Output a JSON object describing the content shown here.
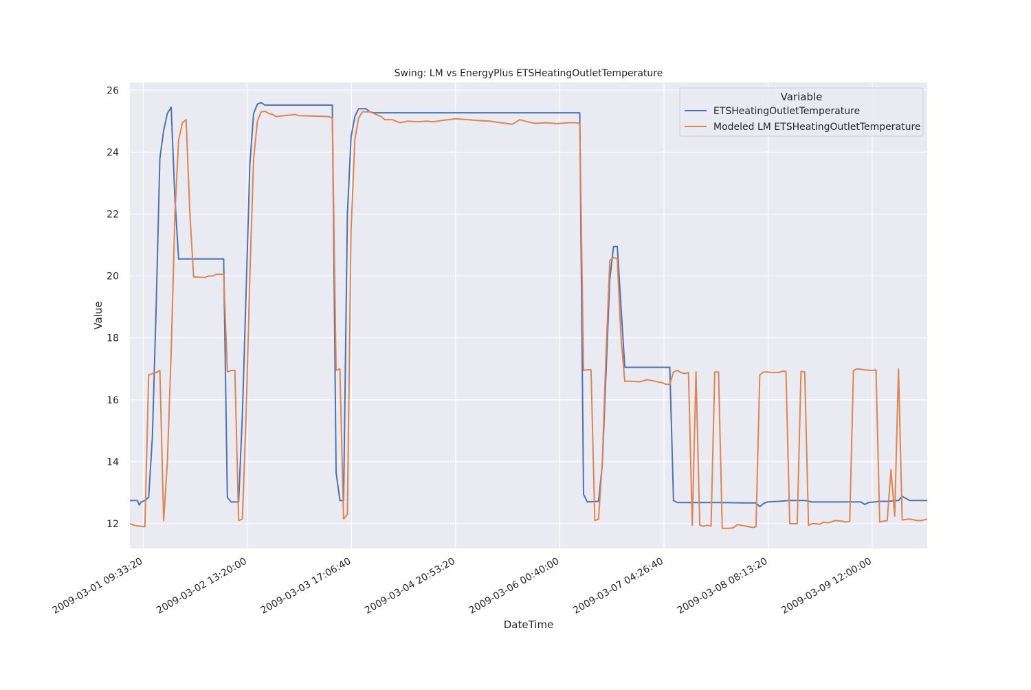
{
  "chart_data": {
    "type": "line",
    "title": "Swing: LM vs EnergyPlus ETSHeatingOutletTemperature",
    "xlabel": "DateTime",
    "ylabel": "Value",
    "xlim": [
      "2009-03-01 06:00:00",
      "2009-03-10 02:40:00"
    ],
    "ylim": [
      11.2,
      26.25
    ],
    "x_ticks": [
      "2009-03-01 09:33:20",
      "2009-03-02 13:20:00",
      "2009-03-03 17:06:40",
      "2009-03-04 20:53:20",
      "2009-03-06 00:40:00",
      "2009-03-07 04:26:40",
      "2009-03-08 08:13:20",
      "2009-03-09 12:00:00"
    ],
    "y_ticks": [
      12,
      14,
      16,
      18,
      20,
      22,
      24,
      26
    ],
    "grid": true,
    "legend": {
      "title": "Variable",
      "position": "top-right"
    },
    "series": [
      {
        "name": "ETSHeatingOutletTemperature",
        "color": "#4c72b0",
        "points": [
          [
            "2009-03-01 06:00:00",
            12.75
          ],
          [
            "2009-03-01 08:00:00",
            12.75
          ],
          [
            "2009-03-01 08:30:00",
            12.6
          ],
          [
            "2009-03-01 09:00:00",
            12.7
          ],
          [
            "2009-03-01 10:00:00",
            12.75
          ],
          [
            "2009-03-01 11:00:00",
            12.85
          ],
          [
            "2009-03-01 12:00:00",
            14.8
          ],
          [
            "2009-03-01 13:00:00",
            19.0
          ],
          [
            "2009-03-01 14:00:00",
            23.8
          ],
          [
            "2009-03-01 15:00:00",
            24.7
          ],
          [
            "2009-03-01 16:00:00",
            25.25
          ],
          [
            "2009-03-01 17:00:00",
            25.45
          ],
          [
            "2009-03-01 18:00:00",
            22.5
          ],
          [
            "2009-03-01 19:00:00",
            20.55
          ],
          [
            "2009-03-02 07:00:00",
            20.55
          ],
          [
            "2009-03-02 08:00:00",
            12.85
          ],
          [
            "2009-03-02 09:00:00",
            12.7
          ],
          [
            "2009-03-02 11:00:00",
            12.7
          ],
          [
            "2009-03-02 12:00:00",
            15.5
          ],
          [
            "2009-03-02 13:00:00",
            19.5
          ],
          [
            "2009-03-02 14:00:00",
            23.6
          ],
          [
            "2009-03-02 15:00:00",
            25.25
          ],
          [
            "2009-03-02 16:00:00",
            25.55
          ],
          [
            "2009-03-02 17:00:00",
            25.6
          ],
          [
            "2009-03-02 18:00:00",
            25.52
          ],
          [
            "2009-03-03 12:00:00",
            25.52
          ],
          [
            "2009-03-03 13:00:00",
            13.65
          ],
          [
            "2009-03-03 14:00:00",
            12.75
          ],
          [
            "2009-03-03 15:00:00",
            12.75
          ],
          [
            "2009-03-03 16:00:00",
            22.0
          ],
          [
            "2009-03-03 17:00:00",
            24.5
          ],
          [
            "2009-03-03 18:00:00",
            25.15
          ],
          [
            "2009-03-03 19:00:00",
            25.4
          ],
          [
            "2009-03-03 21:00:00",
            25.4
          ],
          [
            "2009-03-03 22:00:00",
            25.3
          ],
          [
            "2009-03-03 23:00:00",
            25.27
          ],
          [
            "2009-03-06 06:00:00",
            25.27
          ],
          [
            "2009-03-06 07:00:00",
            12.95
          ],
          [
            "2009-03-06 08:00:00",
            12.7
          ],
          [
            "2009-03-06 11:00:00",
            12.72
          ],
          [
            "2009-03-06 12:00:00",
            13.9
          ],
          [
            "2009-03-06 14:00:00",
            19.9
          ],
          [
            "2009-03-06 15:00:00",
            20.95
          ],
          [
            "2009-03-06 16:00:00",
            20.95
          ],
          [
            "2009-03-06 18:00:00",
            17.05
          ],
          [
            "2009-03-07 06:00:00",
            17.05
          ],
          [
            "2009-03-07 07:00:00",
            12.75
          ],
          [
            "2009-03-07 08:00:00",
            12.68
          ],
          [
            "2009-03-07 20:00:00",
            12.68
          ],
          [
            "2009-03-08 02:00:00",
            12.67
          ],
          [
            "2009-03-08 05:00:00",
            12.67
          ],
          [
            "2009-03-08 06:00:00",
            12.55
          ],
          [
            "2009-03-08 07:00:00",
            12.65
          ],
          [
            "2009-03-08 08:00:00",
            12.7
          ],
          [
            "2009-03-08 11:00:00",
            12.72
          ],
          [
            "2009-03-08 14:00:00",
            12.75
          ],
          [
            "2009-03-08 18:00:00",
            12.75
          ],
          [
            "2009-03-08 20:00:00",
            12.7
          ],
          [
            "2009-03-09 09:00:00",
            12.7
          ],
          [
            "2009-03-09 10:00:00",
            12.62
          ],
          [
            "2009-03-09 11:00:00",
            12.68
          ],
          [
            "2009-03-09 14:00:00",
            12.72
          ],
          [
            "2009-03-09 16:00:00",
            12.72
          ],
          [
            "2009-03-09 19:00:00",
            12.75
          ],
          [
            "2009-03-09 20:00:00",
            12.88
          ],
          [
            "2009-03-09 22:00:00",
            12.75
          ],
          [
            "2009-03-10 02:40:00",
            12.75
          ]
        ]
      },
      {
        "name": "Modeled LM ETSHeatingOutletTemperature",
        "color": "#dd8452",
        "points": [
          [
            "2009-03-01 06:00:00",
            12.0
          ],
          [
            "2009-03-01 07:00:00",
            11.95
          ],
          [
            "2009-03-01 08:00:00",
            11.93
          ],
          [
            "2009-03-01 10:00:00",
            11.9
          ],
          [
            "2009-03-01 11:00:00",
            16.8
          ],
          [
            "2009-03-01 12:00:00",
            16.85
          ],
          [
            "2009-03-01 13:00:00",
            16.88
          ],
          [
            "2009-03-01 14:00:00",
            16.95
          ],
          [
            "2009-03-01 15:00:00",
            12.1
          ],
          [
            "2009-03-01 16:00:00",
            14.0
          ],
          [
            "2009-03-01 17:00:00",
            17.5
          ],
          [
            "2009-03-01 18:00:00",
            22.0
          ],
          [
            "2009-03-01 19:00:00",
            24.4
          ],
          [
            "2009-03-01 20:00:00",
            24.95
          ],
          [
            "2009-03-01 21:00:00",
            25.05
          ],
          [
            "2009-03-01 22:00:00",
            22.0
          ],
          [
            "2009-03-01 23:00:00",
            19.97
          ],
          [
            "2009-03-02 02:00:00",
            19.95
          ],
          [
            "2009-03-02 03:00:00",
            20.0
          ],
          [
            "2009-03-02 04:00:00",
            20.0
          ],
          [
            "2009-03-02 05:00:00",
            20.05
          ],
          [
            "2009-03-02 07:00:00",
            20.05
          ],
          [
            "2009-03-02 08:00:00",
            16.9
          ],
          [
            "2009-03-02 09:00:00",
            16.95
          ],
          [
            "2009-03-02 10:00:00",
            16.95
          ],
          [
            "2009-03-02 11:00:00",
            12.1
          ],
          [
            "2009-03-02 12:00:00",
            12.15
          ],
          [
            "2009-03-02 13:00:00",
            15.5
          ],
          [
            "2009-03-02 14:00:00",
            20.0
          ],
          [
            "2009-03-02 15:00:00",
            23.8
          ],
          [
            "2009-03-02 16:00:00",
            25.0
          ],
          [
            "2009-03-02 17:00:00",
            25.3
          ],
          [
            "2009-03-02 18:00:00",
            25.32
          ],
          [
            "2009-03-02 19:00:00",
            25.25
          ],
          [
            "2009-03-02 20:00:00",
            25.22
          ],
          [
            "2009-03-02 21:00:00",
            25.15
          ],
          [
            "2009-03-02 23:00:00",
            25.18
          ],
          [
            "2009-03-03 01:00:00",
            25.2
          ],
          [
            "2009-03-03 02:00:00",
            25.22
          ],
          [
            "2009-03-03 03:00:00",
            25.18
          ],
          [
            "2009-03-03 06:00:00",
            25.17
          ],
          [
            "2009-03-03 11:00:00",
            25.15
          ],
          [
            "2009-03-03 12:00:00",
            25.1
          ],
          [
            "2009-03-03 13:00:00",
            16.95
          ],
          [
            "2009-03-03 14:00:00",
            17.0
          ],
          [
            "2009-03-03 15:00:00",
            12.15
          ],
          [
            "2009-03-03 16:00:00",
            12.3
          ],
          [
            "2009-03-03 17:00:00",
            21.5
          ],
          [
            "2009-03-03 18:00:00",
            24.4
          ],
          [
            "2009-03-03 19:00:00",
            25.1
          ],
          [
            "2009-03-03 20:00:00",
            25.3
          ],
          [
            "2009-03-03 22:00:00",
            25.3
          ],
          [
            "2009-03-03 23:00:00",
            25.25
          ],
          [
            "2009-03-04 00:00:00",
            25.2
          ],
          [
            "2009-03-04 01:00:00",
            25.15
          ],
          [
            "2009-03-04 02:00:00",
            25.05
          ],
          [
            "2009-03-04 04:00:00",
            25.05
          ],
          [
            "2009-03-04 06:00:00",
            24.95
          ],
          [
            "2009-03-04 08:00:00",
            25.0
          ],
          [
            "2009-03-04 11:00:00",
            24.98
          ],
          [
            "2009-03-04 13:00:00",
            25.0
          ],
          [
            "2009-03-04 15:00:00",
            24.98
          ],
          [
            "2009-03-04 17:00:00",
            25.02
          ],
          [
            "2009-03-04 19:00:00",
            25.05
          ],
          [
            "2009-03-04 21:00:00",
            25.08
          ],
          [
            "2009-03-05 00:00:00",
            25.05
          ],
          [
            "2009-03-05 03:00:00",
            25.02
          ],
          [
            "2009-03-05 06:00:00",
            25.0
          ],
          [
            "2009-03-05 09:00:00",
            24.95
          ],
          [
            "2009-03-05 12:00:00",
            24.9
          ],
          [
            "2009-03-05 14:00:00",
            25.05
          ],
          [
            "2009-03-05 16:00:00",
            24.98
          ],
          [
            "2009-03-05 18:00:00",
            24.93
          ],
          [
            "2009-03-05 21:00:00",
            24.95
          ],
          [
            "2009-03-06 00:00:00",
            24.92
          ],
          [
            "2009-03-06 03:00:00",
            24.95
          ],
          [
            "2009-03-06 05:00:00",
            24.95
          ],
          [
            "2009-03-06 06:00:00",
            24.92
          ],
          [
            "2009-03-06 07:00:00",
            16.95
          ],
          [
            "2009-03-06 08:00:00",
            16.97
          ],
          [
            "2009-03-06 09:00:00",
            16.97
          ],
          [
            "2009-03-06 10:00:00",
            12.1
          ],
          [
            "2009-03-06 11:00:00",
            12.15
          ],
          [
            "2009-03-06 12:00:00",
            14.0
          ],
          [
            "2009-03-06 13:00:00",
            17.5
          ],
          [
            "2009-03-06 14:00:00",
            20.5
          ],
          [
            "2009-03-06 15:00:00",
            20.6
          ],
          [
            "2009-03-06 16:00:00",
            20.55
          ],
          [
            "2009-03-06 17:00:00",
            18.0
          ],
          [
            "2009-03-06 18:00:00",
            16.6
          ],
          [
            "2009-03-06 20:00:00",
            16.6
          ],
          [
            "2009-03-06 22:00:00",
            16.58
          ],
          [
            "2009-03-07 00:00:00",
            16.65
          ],
          [
            "2009-03-07 02:00:00",
            16.6
          ],
          [
            "2009-03-07 04:00:00",
            16.55
          ],
          [
            "2009-03-07 05:00:00",
            16.5
          ],
          [
            "2009-03-07 06:00:00",
            16.5
          ],
          [
            "2009-03-07 07:00:00",
            16.9
          ],
          [
            "2009-03-07 08:00:00",
            16.95
          ],
          [
            "2009-03-07 09:00:00",
            16.88
          ],
          [
            "2009-03-07 10:00:00",
            16.85
          ],
          [
            "2009-03-07 11:00:00",
            16.88
          ],
          [
            "2009-03-07 12:00:00",
            11.95
          ],
          [
            "2009-03-07 13:00:00",
            16.9
          ],
          [
            "2009-03-07 14:00:00",
            11.95
          ],
          [
            "2009-03-07 15:00:00",
            11.92
          ],
          [
            "2009-03-07 16:00:00",
            11.95
          ],
          [
            "2009-03-07 17:00:00",
            11.92
          ],
          [
            "2009-03-07 18:00:00",
            16.9
          ],
          [
            "2009-03-07 19:00:00",
            16.9
          ],
          [
            "2009-03-07 20:00:00",
            11.85
          ],
          [
            "2009-03-07 22:00:00",
            11.85
          ],
          [
            "2009-03-07 23:00:00",
            11.87
          ],
          [
            "2009-03-08 00:00:00",
            11.97
          ],
          [
            "2009-03-08 02:00:00",
            11.93
          ],
          [
            "2009-03-08 03:00:00",
            11.9
          ],
          [
            "2009-03-08 04:00:00",
            11.88
          ],
          [
            "2009-03-08 05:00:00",
            11.9
          ],
          [
            "2009-03-08 06:00:00",
            16.8
          ],
          [
            "2009-03-08 07:00:00",
            16.9
          ],
          [
            "2009-03-08 08:00:00",
            16.9
          ],
          [
            "2009-03-08 09:00:00",
            16.88
          ],
          [
            "2009-03-08 11:00:00",
            16.88
          ],
          [
            "2009-03-08 12:00:00",
            16.92
          ],
          [
            "2009-03-08 13:00:00",
            16.92
          ],
          [
            "2009-03-08 14:00:00",
            12.0
          ],
          [
            "2009-03-08 16:00:00",
            12.0
          ],
          [
            "2009-03-08 17:00:00",
            16.92
          ],
          [
            "2009-03-08 18:00:00",
            16.9
          ],
          [
            "2009-03-08 19:00:00",
            11.95
          ],
          [
            "2009-03-08 20:00:00",
            12.0
          ],
          [
            "2009-03-08 21:00:00",
            12.0
          ],
          [
            "2009-03-08 22:00:00",
            11.98
          ],
          [
            "2009-03-08 23:00:00",
            12.05
          ],
          [
            "2009-03-09 00:00:00",
            12.03
          ],
          [
            "2009-03-09 01:00:00",
            12.05
          ],
          [
            "2009-03-09 02:00:00",
            12.1
          ],
          [
            "2009-03-09 04:00:00",
            12.08
          ],
          [
            "2009-03-09 05:00:00",
            12.05
          ],
          [
            "2009-03-09 06:00:00",
            12.08
          ],
          [
            "2009-03-09 07:00:00",
            16.95
          ],
          [
            "2009-03-09 08:00:00",
            17.0
          ],
          [
            "2009-03-09 10:00:00",
            16.97
          ],
          [
            "2009-03-09 12:00:00",
            16.95
          ],
          [
            "2009-03-09 13:00:00",
            16.97
          ],
          [
            "2009-03-09 14:00:00",
            12.05
          ],
          [
            "2009-03-09 15:00:00",
            12.08
          ],
          [
            "2009-03-09 16:00:00",
            12.1
          ],
          [
            "2009-03-09 17:00:00",
            13.75
          ],
          [
            "2009-03-09 18:00:00",
            12.25
          ],
          [
            "2009-03-09 19:00:00",
            17.0
          ],
          [
            "2009-03-09 20:00:00",
            12.12
          ],
          [
            "2009-03-09 22:00:00",
            12.15
          ],
          [
            "2009-03-10 00:00:00",
            12.1
          ],
          [
            "2009-03-10 01:00:00",
            12.1
          ],
          [
            "2009-03-10 02:40:00",
            12.15
          ]
        ]
      }
    ]
  }
}
